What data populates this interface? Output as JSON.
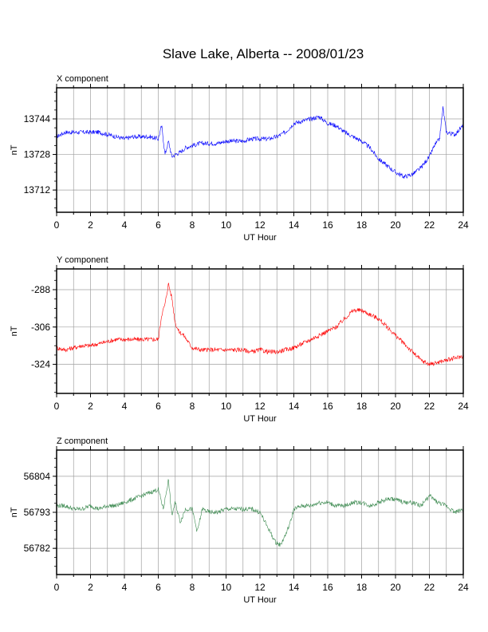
{
  "title": "Slave Lake, Alberta -- 2008/01/23",
  "chart_data": [
    {
      "type": "line",
      "title": "X component",
      "xlabel": "UT Hour",
      "ylabel": "nT",
      "xlim": [
        0,
        24
      ],
      "ylim": [
        13702,
        13758
      ],
      "xticks": [
        "0",
        "2",
        "4",
        "6",
        "8",
        "10",
        "12",
        "14",
        "16",
        "18",
        "20",
        "22",
        "24"
      ],
      "yticks": [
        "13744",
        "13728",
        "13712"
      ],
      "grid": true,
      "series": [
        {
          "color": "#0000ff",
          "x": [
            0,
            0.5,
            1,
            1.5,
            2,
            2.5,
            3,
            3.5,
            4,
            4.5,
            5,
            5.5,
            6,
            6.2,
            6.4,
            6.6,
            6.8,
            7,
            7.3,
            7.6,
            8,
            8.5,
            9,
            9.5,
            10,
            10.5,
            11,
            11.5,
            12,
            12.5,
            13,
            13.5,
            14,
            14.5,
            15,
            15.5,
            16,
            16.5,
            17,
            17.5,
            18,
            18.5,
            19,
            19.5,
            20,
            20.5,
            21,
            21.5,
            22,
            22.3,
            22.6,
            22.8,
            23,
            23.5,
            24
          ],
          "y": [
            13736,
            13738,
            13738,
            13738,
            13738,
            13738,
            13737,
            13736,
            13735,
            13736,
            13736,
            13736,
            13735,
            13741,
            13728,
            13734,
            13727,
            13728,
            13729,
            13731,
            13732,
            13733,
            13733,
            13733,
            13734,
            13734,
            13734,
            13735,
            13735,
            13735,
            13736,
            13738,
            13742,
            13743,
            13744,
            13745,
            13742,
            13741,
            13738,
            13736,
            13734,
            13731,
            13726,
            13723,
            13720,
            13718,
            13719,
            13722,
            13727,
            13732,
            13735,
            13749,
            13738,
            13737,
            13741
          ]
        }
      ]
    },
    {
      "type": "line",
      "title": "Y component",
      "xlabel": "UT Hour",
      "ylabel": "nT",
      "xlim": [
        0,
        24
      ],
      "ylim": [
        -338,
        -278
      ],
      "xticks": [
        "0",
        "2",
        "4",
        "6",
        "8",
        "10",
        "12",
        "14",
        "16",
        "18",
        "20",
        "22",
        "24"
      ],
      "yticks": [
        "-288",
        "-306",
        "-324"
      ],
      "grid": true,
      "series": [
        {
          "color": "#ff0000",
          "x": [
            0,
            0.5,
            1,
            1.5,
            2,
            2.5,
            3,
            3.5,
            4,
            4.5,
            5,
            5.5,
            6,
            6.2,
            6.4,
            6.6,
            6.8,
            7,
            7.2,
            7.5,
            8,
            8.5,
            9,
            9.5,
            10,
            10.5,
            11,
            11.5,
            12,
            12.5,
            13,
            13.5,
            14,
            14.5,
            15,
            15.5,
            16,
            16.5,
            17,
            17.5,
            18,
            18.5,
            19,
            19.5,
            20,
            20.5,
            21,
            21.5,
            22,
            22.5,
            23,
            23.5,
            24
          ],
          "y": [
            -316,
            -317,
            -316,
            -315,
            -315,
            -314,
            -313,
            -312,
            -312,
            -312,
            -312,
            -312,
            -312,
            -300,
            -295,
            -285,
            -292,
            -304,
            -308,
            -310,
            -316,
            -317,
            -317,
            -317,
            -317,
            -317,
            -317,
            -318,
            -317,
            -318,
            -318,
            -317,
            -316,
            -314,
            -312,
            -310,
            -308,
            -306,
            -302,
            -298,
            -298,
            -300,
            -302,
            -306,
            -310,
            -314,
            -318,
            -322,
            -324,
            -323,
            -322,
            -321,
            -320
          ]
        }
      ]
    },
    {
      "type": "line",
      "title": "Z component",
      "xlabel": "UT Hour",
      "ylabel": "nT",
      "xlim": [
        0,
        24
      ],
      "ylim": [
        56774,
        56812
      ],
      "xticks": [
        "0",
        "2",
        "4",
        "6",
        "8",
        "10",
        "12",
        "14",
        "16",
        "18",
        "20",
        "22",
        "24"
      ],
      "yticks": [
        "56804",
        "56793",
        "56782"
      ],
      "grid": true,
      "series": [
        {
          "color": "#3c8a50",
          "x": [
            0,
            0.5,
            1,
            1.5,
            2,
            2.5,
            3,
            3.5,
            4,
            4.5,
            5,
            5.5,
            6,
            6.3,
            6.6,
            6.8,
            7,
            7.3,
            7.6,
            8,
            8.3,
            8.6,
            9,
            9.5,
            10,
            10.5,
            11,
            11.5,
            12,
            12.3,
            12.6,
            12.9,
            13.2,
            13.5,
            13.8,
            14,
            14.5,
            15,
            15.5,
            16,
            16.5,
            17,
            17.5,
            18,
            18.5,
            19,
            19.5,
            20,
            20.5,
            21,
            21.5,
            22,
            22.5,
            23,
            23.5,
            24
          ],
          "y": [
            56795,
            56795,
            56794,
            56794,
            56795,
            56794,
            56795,
            56795,
            56796,
            56797,
            56798,
            56799,
            56800,
            56794,
            56803,
            56792,
            56796,
            56790,
            56794,
            56794,
            56787,
            56794,
            56793,
            56793,
            56794,
            56794,
            56794,
            56794,
            56793,
            56790,
            56787,
            56784,
            56783,
            56786,
            56790,
            56794,
            56795,
            56795,
            56796,
            56796,
            56795,
            56795,
            56796,
            56796,
            56795,
            56796,
            56797,
            56797,
            56796,
            56796,
            56795,
            56798,
            56796,
            56795,
            56793,
            56794
          ]
        }
      ]
    }
  ]
}
